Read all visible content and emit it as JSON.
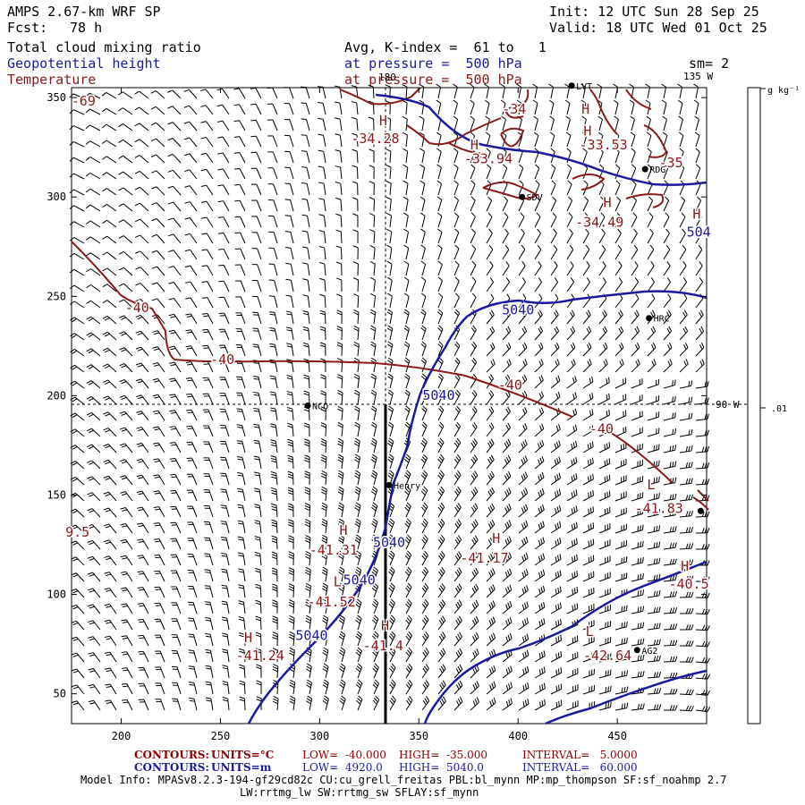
{
  "header": {
    "title": "AMPS 2.67-km WRF SP",
    "init": "Init: 12 UTC Sun 28 Sep 25",
    "fcst_label": "Fcst:",
    "fcst_value": "78 h",
    "valid": "Valid: 18 UTC Wed 01 Oct 25",
    "field1": "Total cloud mixing ratio",
    "field2": "Geopotential height",
    "field3": "Temperature",
    "avg": "Avg, K-index =  61 to   1",
    "pressure1": "at pressure =  500 hPa",
    "pressure2": "at pressure =  500 hPa",
    "sm": "sm= 2",
    "lon_135": "135 W",
    "lon_180": "180"
  },
  "colorbar": {
    "unit": "g kg⁻¹",
    "value": ".01",
    "lon_90": "90 W"
  },
  "axes": {
    "x_ticks": [
      "200",
      "250",
      "300",
      "350",
      "400",
      "450"
    ],
    "y_ticks": [
      "50",
      "100",
      "150",
      "200",
      "250",
      "300",
      "350"
    ]
  },
  "stations": [
    {
      "id": "LVT",
      "x": 427,
      "y": 356
    },
    {
      "id": "RDG",
      "x": 464,
      "y": 314
    },
    {
      "id": "SDV",
      "x": 402,
      "y": 300
    },
    {
      "id": "HRC",
      "x": 466,
      "y": 239
    },
    {
      "id": "NCO",
      "x": 294,
      "y": 195
    },
    {
      "id": "Henry",
      "x": 335,
      "y": 155
    },
    {
      "id": "AG2",
      "x": 460,
      "y": 72
    },
    {
      "id": "",
      "x": 492,
      "y": 142
    }
  ],
  "temp_labels": [
    {
      "text": "-69",
      "x": 181,
      "y": 346
    },
    {
      "text": "-34",
      "x": 398,
      "y": 342
    },
    {
      "text": "-34.28",
      "x": 328,
      "y": 327
    },
    {
      "text": "-33.94",
      "x": 385,
      "y": 317
    },
    {
      "text": "-33.53",
      "x": 443,
      "y": 324
    },
    {
      "text": "-35",
      "x": 477,
      "y": 315
    },
    {
      "text": "-34.49",
      "x": 441,
      "y": 285
    },
    {
      "text": "-40",
      "x": 208,
      "y": 242
    },
    {
      "text": "-40",
      "x": 251,
      "y": 216
    },
    {
      "text": "-40",
      "x": 396,
      "y": 203
    },
    {
      "text": "-40",
      "x": 442,
      "y": 181
    },
    {
      "text": "-41.83",
      "x": 471,
      "y": 141
    },
    {
      "text": "9.5",
      "x": 178,
      "y": 129
    },
    {
      "text": "-41.31",
      "x": 307,
      "y": 120
    },
    {
      "text": "-41.17",
      "x": 383,
      "y": 116
    },
    {
      "text": "-40.5",
      "x": 486,
      "y": 103
    },
    {
      "text": "-41.52",
      "x": 306,
      "y": 94
    },
    {
      "text": "-42.64",
      "x": 445,
      "y": 67
    },
    {
      "text": "-41.24",
      "x": 270,
      "y": 67
    },
    {
      "text": "-41.4",
      "x": 332,
      "y": 72
    }
  ],
  "height_labels": [
    {
      "text": "5040",
      "x": 400,
      "y": 241
    },
    {
      "text": "5040",
      "x": 360,
      "y": 198
    },
    {
      "text": "5040",
      "x": 335,
      "y": 124
    },
    {
      "text": "5040",
      "x": 320,
      "y": 105
    },
    {
      "text": "5040",
      "x": 296,
      "y": 77
    },
    {
      "text": "504",
      "x": 491,
      "y": 280
    }
  ],
  "hl_markers": [
    {
      "text": "H",
      "x": 434,
      "y": 342
    },
    {
      "text": "H",
      "x": 332,
      "y": 336
    },
    {
      "text": "H",
      "x": 435,
      "y": 331
    },
    {
      "text": "H",
      "x": 378,
      "y": 324
    },
    {
      "text": "H",
      "x": 445,
      "y": 295
    },
    {
      "text": "H",
      "x": 490,
      "y": 289
    },
    {
      "text": "L",
      "x": 467,
      "y": 153
    },
    {
      "text": "H",
      "x": 312,
      "y": 130
    },
    {
      "text": "H",
      "x": 389,
      "y": 126
    },
    {
      "text": "H",
      "x": 484,
      "y": 112
    },
    {
      "text": "L",
      "x": 309,
      "y": 104
    },
    {
      "text": "L",
      "x": 436,
      "y": 79
    },
    {
      "text": "H",
      "x": 264,
      "y": 76
    },
    {
      "text": "H",
      "x": 333,
      "y": 82
    }
  ],
  "footer": {
    "row1": {
      "contours": "CONTOURS:",
      "units": "UNITS=°C",
      "low": "LOW=  -40.000",
      "high": "HIGH=  -35.000",
      "interval": "INTERVAL=   5.0000"
    },
    "row2": {
      "contours": "CONTOURS:",
      "units": "UNITS=m",
      "low": "LOW=  4920.0",
      "high": "HIGH=  5040.0",
      "interval": "INTERVAL=   60.000"
    },
    "model_info": "Model Info: MPASv8.2.3-194-gf29cd82c CU:cu_grell_freitas PBL:bl_mynn MP:mp_thompson SF:sf_noahmp 2.7",
    "model_info2": "LW:rrtmg_lw SW:rrtmg_sw SFLAY:sf_mynn"
  },
  "colors": {
    "temperature": "#8b1a1a",
    "height": "#1a1a9e",
    "barbs": "#000000"
  }
}
